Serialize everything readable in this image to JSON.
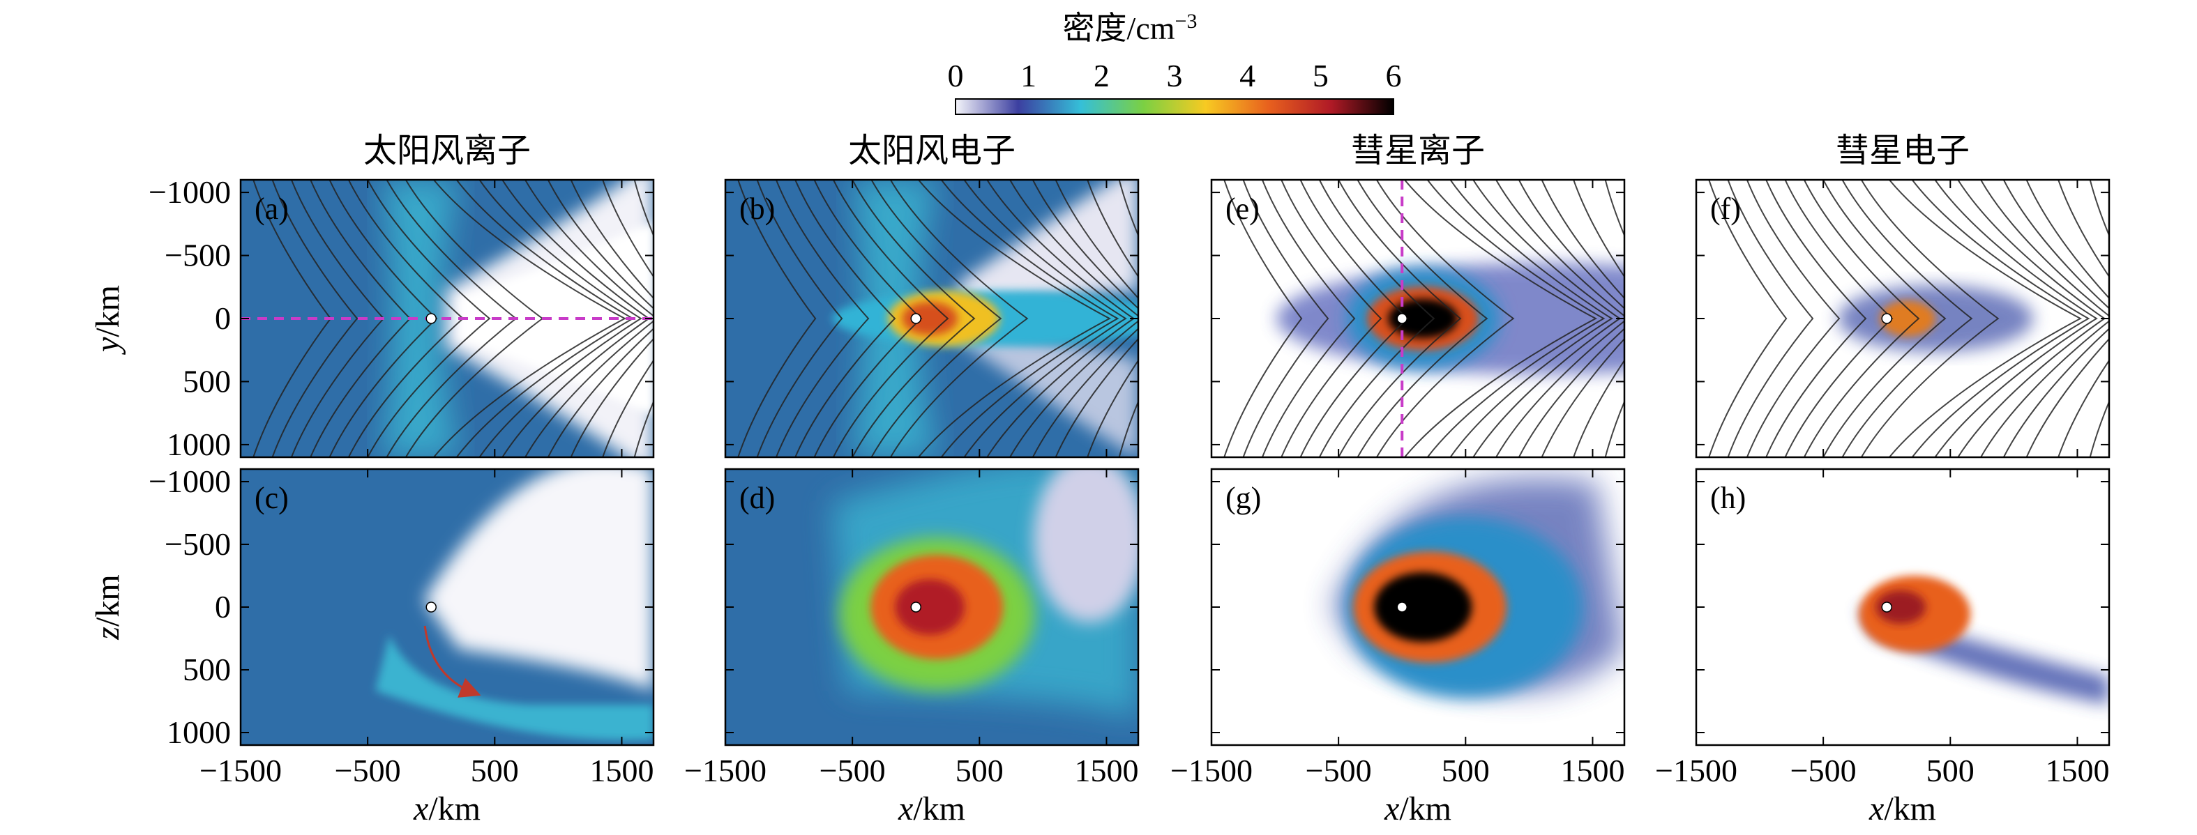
{
  "colorbar": {
    "title": "密度/cm",
    "title_sup": "−3",
    "range": [
      0,
      6
    ],
    "ticks": [
      "0",
      "1",
      "2",
      "3",
      "4",
      "5",
      "6"
    ],
    "colormap_stops": [
      "#f4f4fa",
      "#3c3fa0",
      "#35bfd8",
      "#7bd043",
      "#f7ca22",
      "#e8611e",
      "#b01a26",
      "#000000"
    ]
  },
  "columns": [
    "太阳风离子",
    "太阳风电子",
    "彗星离子",
    "彗星电子"
  ],
  "panels": [
    {
      "letter": "(a)",
      "column": 0,
      "row": 0,
      "background": "solar_ion_xy",
      "field_lines": true,
      "guide": "horizontal-dashed"
    },
    {
      "letter": "(b)",
      "column": 1,
      "row": 0,
      "background": "solar_electron_xy",
      "field_lines": true,
      "guide": "none"
    },
    {
      "letter": "(e)",
      "column": 2,
      "row": 0,
      "background": "comet_ion_xy",
      "field_lines": true,
      "guide": "vertical-dashed"
    },
    {
      "letter": "(f)",
      "column": 3,
      "row": 0,
      "background": "comet_electron_xy",
      "field_lines": true,
      "guide": "none"
    },
    {
      "letter": "(c)",
      "column": 0,
      "row": 1,
      "background": "solar_ion_xz",
      "field_lines": false,
      "guide": "arrow"
    },
    {
      "letter": "(d)",
      "column": 1,
      "row": 1,
      "background": "solar_electron_xz",
      "field_lines": false,
      "guide": "none"
    },
    {
      "letter": "(g)",
      "column": 2,
      "row": 1,
      "background": "comet_ion_xz",
      "field_lines": false,
      "guide": "none"
    },
    {
      "letter": "(h)",
      "column": 3,
      "row": 1,
      "background": "comet_electron_xz",
      "field_lines": false,
      "guide": "none"
    }
  ],
  "axes": {
    "x": {
      "label_var": "x",
      "label_unit": "/km",
      "range": [
        -1500,
        1750
      ],
      "ticks": [
        -1500,
        -500,
        500,
        1500
      ],
      "tick_labels": [
        "−1500",
        "−500",
        "500",
        "1500"
      ]
    },
    "y": {
      "label_var": "y",
      "label_unit": "/km",
      "range": [
        -1100,
        1100
      ],
      "ticks": [
        -1000,
        -500,
        0,
        500,
        1000
      ],
      "tick_labels": [
        "−1000",
        "−500",
        "0",
        "500",
        "1000"
      ]
    },
    "z": {
      "label_var": "z",
      "label_unit": "/km",
      "range": [
        -1100,
        1100
      ],
      "ticks": [
        -1000,
        -500,
        0,
        500,
        1000
      ],
      "tick_labels": [
        "−1000",
        "−500",
        "0",
        "500",
        "1000"
      ]
    }
  },
  "chart_data": {
    "type": "heatmap",
    "variable": "density",
    "units": "cm^-3",
    "value_range": [
      0,
      6
    ],
    "nucleus_position": {
      "x": 0,
      "y": 0,
      "z": 0
    },
    "panels": [
      {
        "id": "a",
        "species": "太阳风离子",
        "plane": "x-y"
      },
      {
        "id": "b",
        "species": "太阳风电子",
        "plane": "x-y"
      },
      {
        "id": "e",
        "species": "彗星离子",
        "plane": "x-y"
      },
      {
        "id": "f",
        "species": "彗星电子",
        "plane": "x-y"
      },
      {
        "id": "c",
        "species": "太阳风离子",
        "plane": "x-z"
      },
      {
        "id": "d",
        "species": "太阳风电子",
        "plane": "x-z"
      },
      {
        "id": "g",
        "species": "彗星离子",
        "plane": "x-z"
      },
      {
        "id": "h",
        "species": "彗星电子",
        "plane": "x-z"
      }
    ]
  }
}
